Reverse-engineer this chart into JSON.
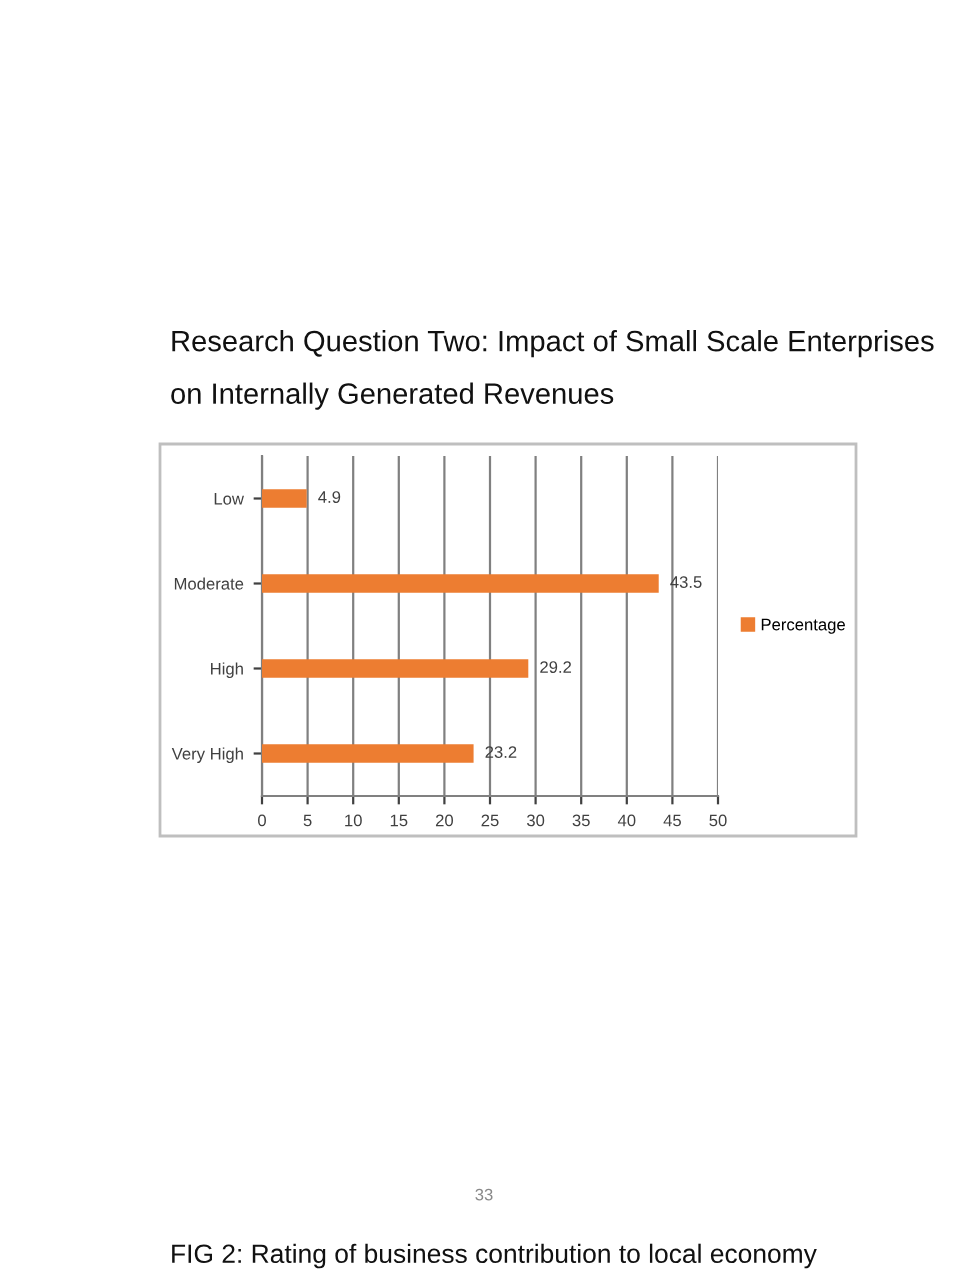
{
  "chart_data": {
    "type": "bar",
    "orientation": "horizontal",
    "title": "Research Question Two: Impact of Small Scale Enterprises on Internally Generated Revenues",
    "categories": [
      "Low",
      "Moderate",
      "High",
      "Very High"
    ],
    "series": [
      {
        "name": "Percentage",
        "color": "#ed7d31",
        "values": [
          4.9,
          43.5,
          29.2,
          23.2
        ]
      }
    ],
    "xlim": [
      0,
      50
    ],
    "xticks": [
      0,
      5,
      10,
      15,
      20,
      25,
      30,
      35,
      40,
      45,
      50
    ],
    "grid": "x",
    "legend": "right",
    "data_labels": true,
    "annotations": [
      "33",
      "FIG 2: Rating of business contribution to local economy"
    ]
  }
}
